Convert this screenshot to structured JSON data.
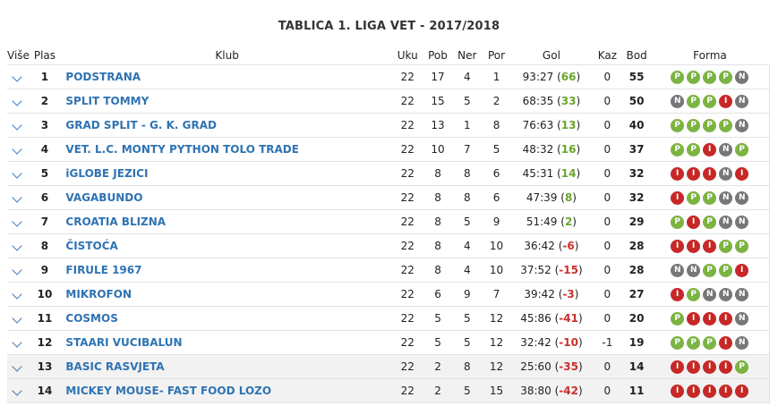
{
  "title": "TABLICA 1. LIGA VET - 2017/2018",
  "headers": {
    "vise": "Više",
    "plas": "Plas",
    "klub": "Klub",
    "uku": "Uku",
    "pob": "Pob",
    "ner": "Ner",
    "por": "Por",
    "gol": "Gol",
    "kaz": "Kaz",
    "bod": "Bod",
    "forma": "Forma"
  },
  "colors": {
    "club_link": "#2f73b2",
    "form_win": "#7cb342",
    "form_draw": "#777777",
    "form_loss": "#c62828",
    "goal_diff_positive": "#6aa42a",
    "goal_diff_negative": "#c9302c"
  },
  "rows": [
    {
      "plas": "1",
      "klub": "PODSTRANA",
      "uku": "22",
      "pob": "17",
      "ner": "4",
      "por": "1",
      "gol": "93:27",
      "gd": "66",
      "kaz": "0",
      "bod": "55",
      "forma": [
        "P",
        "P",
        "P",
        "P",
        "N"
      ]
    },
    {
      "plas": "2",
      "klub": "SPLIT TOMMY",
      "uku": "22",
      "pob": "15",
      "ner": "5",
      "por": "2",
      "gol": "68:35",
      "gd": "33",
      "kaz": "0",
      "bod": "50",
      "forma": [
        "N",
        "P",
        "P",
        "I",
        "N"
      ]
    },
    {
      "plas": "3",
      "klub": "GRAD SPLIT - G. K. GRAD",
      "uku": "22",
      "pob": "13",
      "ner": "1",
      "por": "8",
      "gol": "76:63",
      "gd": "13",
      "kaz": "0",
      "bod": "40",
      "forma": [
        "P",
        "P",
        "P",
        "P",
        "N"
      ]
    },
    {
      "plas": "4",
      "klub": "VET. L.C. MONTY PYTHON TOLO TRADE",
      "uku": "22",
      "pob": "10",
      "ner": "7",
      "por": "5",
      "gol": "48:32",
      "gd": "16",
      "kaz": "0",
      "bod": "37",
      "forma": [
        "P",
        "P",
        "I",
        "N",
        "P"
      ]
    },
    {
      "plas": "5",
      "klub": "iGLOBE JEZICI",
      "uku": "22",
      "pob": "8",
      "ner": "8",
      "por": "6",
      "gol": "45:31",
      "gd": "14",
      "kaz": "0",
      "bod": "32",
      "forma": [
        "I",
        "I",
        "I",
        "N",
        "I"
      ]
    },
    {
      "plas": "6",
      "klub": "VAGABUNDO",
      "uku": "22",
      "pob": "8",
      "ner": "8",
      "por": "6",
      "gol": "47:39",
      "gd": "8",
      "kaz": "0",
      "bod": "32",
      "forma": [
        "I",
        "P",
        "P",
        "N",
        "N"
      ]
    },
    {
      "plas": "7",
      "klub": "CROATIA BLIZNA",
      "uku": "22",
      "pob": "8",
      "ner": "5",
      "por": "9",
      "gol": "51:49",
      "gd": "2",
      "kaz": "0",
      "bod": "29",
      "forma": [
        "P",
        "I",
        "P",
        "N",
        "N"
      ]
    },
    {
      "plas": "8",
      "klub": "ČISTOĆA",
      "uku": "22",
      "pob": "8",
      "ner": "4",
      "por": "10",
      "gol": "36:42",
      "gd": "-6",
      "kaz": "0",
      "bod": "28",
      "forma": [
        "I",
        "I",
        "I",
        "P",
        "P"
      ]
    },
    {
      "plas": "9",
      "klub": "FIRULE 1967",
      "uku": "22",
      "pob": "8",
      "ner": "4",
      "por": "10",
      "gol": "37:52",
      "gd": "-15",
      "kaz": "0",
      "bod": "28",
      "forma": [
        "N",
        "N",
        "P",
        "P",
        "I"
      ]
    },
    {
      "plas": "10",
      "klub": "MIKROFON",
      "uku": "22",
      "pob": "6",
      "ner": "9",
      "por": "7",
      "gol": "39:42",
      "gd": "-3",
      "kaz": "0",
      "bod": "27",
      "forma": [
        "I",
        "P",
        "N",
        "N",
        "N"
      ]
    },
    {
      "plas": "11",
      "klub": "COSMOS",
      "uku": "22",
      "pob": "5",
      "ner": "5",
      "por": "12",
      "gol": "45:86",
      "gd": "-41",
      "kaz": "0",
      "bod": "20",
      "forma": [
        "P",
        "I",
        "I",
        "I",
        "N"
      ]
    },
    {
      "plas": "12",
      "klub": "STAARI VUCIBALUN",
      "uku": "22",
      "pob": "5",
      "ner": "5",
      "por": "12",
      "gol": "32:42",
      "gd": "-10",
      "kaz": "-1",
      "bod": "19",
      "forma": [
        "P",
        "P",
        "P",
        "I",
        "N"
      ]
    },
    {
      "plas": "13",
      "klub": "BASIC RASVJETA",
      "uku": "22",
      "pob": "2",
      "ner": "8",
      "por": "12",
      "gol": "25:60",
      "gd": "-35",
      "kaz": "0",
      "bod": "14",
      "forma": [
        "I",
        "I",
        "I",
        "I",
        "P"
      ]
    },
    {
      "plas": "14",
      "klub": "MICKEY MOUSE- FAST FOOD LOZO",
      "uku": "22",
      "pob": "2",
      "ner": "5",
      "por": "15",
      "gol": "38:80",
      "gd": "-42",
      "kaz": "0",
      "bod": "11",
      "forma": [
        "I",
        "I",
        "I",
        "I",
        "I"
      ]
    }
  ]
}
